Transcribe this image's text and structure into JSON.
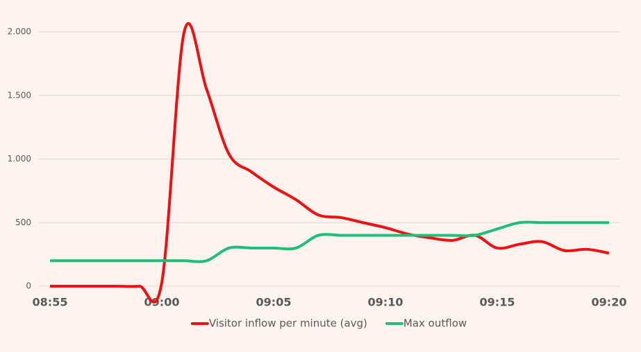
{
  "chart_data": {
    "type": "line",
    "categories": [
      "08:55",
      null,
      null,
      null,
      null,
      "09:00",
      null,
      null,
      null,
      null,
      "09:05",
      null,
      null,
      null,
      null,
      "09:10",
      null,
      null,
      null,
      null,
      "09:15",
      null,
      null,
      null,
      null,
      "09:20"
    ],
    "series": [
      {
        "name": "Visitor inflow per minute (avg)",
        "color": "#ee1111",
        "values": [
          0,
          0,
          0,
          0,
          0,
          30,
          2000,
          1550,
          1040,
          900,
          780,
          680,
          560,
          540,
          500,
          460,
          410,
          380,
          360,
          400,
          300,
          330,
          350,
          280,
          290,
          260
        ]
      },
      {
        "name": "Max outflow",
        "color": "#1fbf7a",
        "values": [
          200,
          200,
          200,
          200,
          200,
          200,
          200,
          200,
          300,
          300,
          300,
          300,
          400,
          400,
          400,
          400,
          400,
          400,
          400,
          400,
          450,
          500,
          500,
          500,
          500,
          500
        ]
      }
    ],
    "ylim": [
      0,
      2000
    ],
    "yticks": [
      {
        "value": 0,
        "label": "0"
      },
      {
        "value": 500,
        "label": "500"
      },
      {
        "value": 1000,
        "label": "1.000"
      },
      {
        "value": 1500,
        "label": "1.500"
      },
      {
        "value": 2000,
        "label": "2.000"
      }
    ],
    "grid": true,
    "legend": "bottom"
  }
}
